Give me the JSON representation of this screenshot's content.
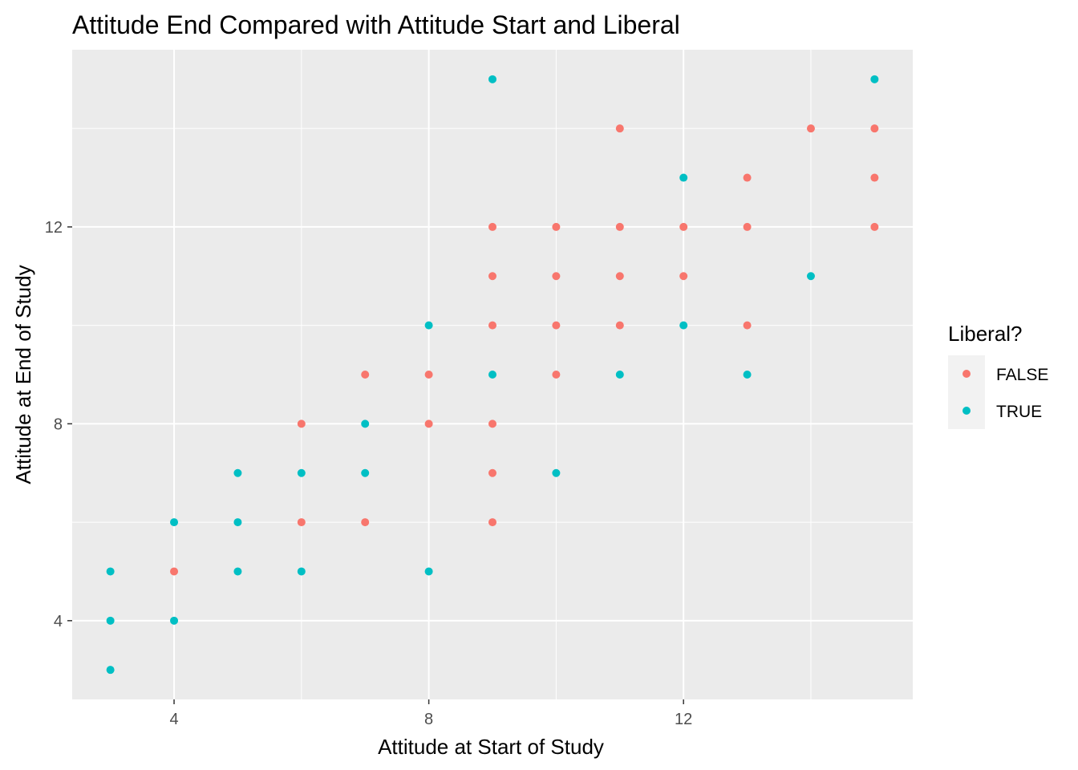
{
  "chart_data": {
    "type": "scatter",
    "title": "Attitude End Compared with Attitude Start and Liberal",
    "xlabel": "Attitude at Start of Study",
    "ylabel": "Attitude at End of Study",
    "xlim": [
      2.4,
      15.6
    ],
    "ylim": [
      2.4,
      15.6
    ],
    "x_ticks": [
      4,
      8,
      12
    ],
    "y_ticks": [
      4,
      8,
      12
    ],
    "x_tick_labels": [
      "4",
      "8",
      "12"
    ],
    "y_tick_labels": [
      "4",
      "8",
      "12"
    ],
    "background": "#ebebeb",
    "grid": true,
    "legend": {
      "title": "Liberal?",
      "position": "right",
      "entries": [
        "FALSE",
        "TRUE"
      ]
    },
    "series": [
      {
        "name": "FALSE",
        "color": "#f8766d",
        "points": [
          [
            4,
            5
          ],
          [
            6,
            8
          ],
          [
            6,
            6
          ],
          [
            7,
            9
          ],
          [
            7,
            6
          ],
          [
            8,
            9
          ],
          [
            8,
            8
          ],
          [
            9,
            12
          ],
          [
            9,
            11
          ],
          [
            9,
            10
          ],
          [
            9,
            8
          ],
          [
            9,
            7
          ],
          [
            9,
            6
          ],
          [
            10,
            12
          ],
          [
            10,
            11
          ],
          [
            10,
            10
          ],
          [
            10,
            9
          ],
          [
            11,
            14
          ],
          [
            11,
            12
          ],
          [
            11,
            11
          ],
          [
            11,
            10
          ],
          [
            12,
            12
          ],
          [
            12,
            11
          ],
          [
            13,
            13
          ],
          [
            13,
            12
          ],
          [
            13,
            10
          ],
          [
            14,
            14
          ],
          [
            15,
            14
          ],
          [
            15,
            13
          ],
          [
            15,
            12
          ]
        ]
      },
      {
        "name": "TRUE",
        "color": "#00bfc4",
        "points": [
          [
            3,
            5
          ],
          [
            3,
            4
          ],
          [
            3,
            3
          ],
          [
            4,
            6
          ],
          [
            4,
            4
          ],
          [
            5,
            7
          ],
          [
            5,
            6
          ],
          [
            5,
            5
          ],
          [
            6,
            7
          ],
          [
            6,
            5
          ],
          [
            7,
            8
          ],
          [
            7,
            7
          ],
          [
            8,
            10
          ],
          [
            8,
            5
          ],
          [
            9,
            15
          ],
          [
            9,
            9
          ],
          [
            10,
            7
          ],
          [
            11,
            9
          ],
          [
            12,
            13
          ],
          [
            12,
            10
          ],
          [
            13,
            9
          ],
          [
            14,
            11
          ],
          [
            15,
            15
          ]
        ]
      }
    ]
  }
}
